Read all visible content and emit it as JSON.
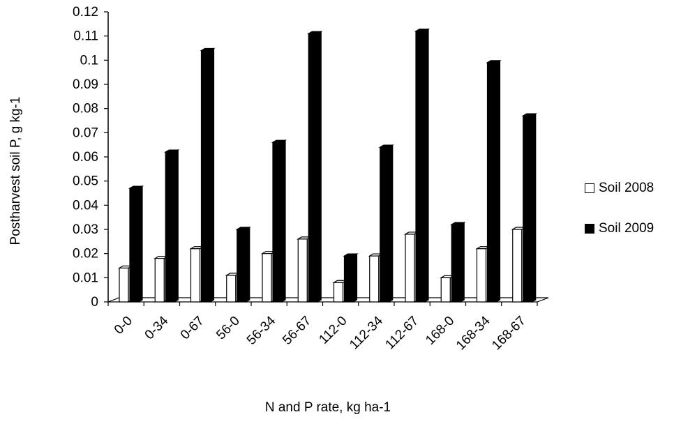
{
  "chart_data": {
    "type": "bar",
    "title": "",
    "xlabel": "N and P rate, kg ha-1",
    "ylabel": "Postharvest soil P, g kg-1",
    "ylim": [
      0,
      0.12
    ],
    "yticks": [
      "0",
      "0.01",
      "0.02",
      "0.03",
      "0.04",
      "0.05",
      "0.06",
      "0.07",
      "0.08",
      "0.09",
      "0.1",
      "0.11",
      "0.12"
    ],
    "categories": [
      "0-0",
      "0-34",
      "0-67",
      "56-0",
      "56-34",
      "56-67",
      "112-0",
      "112-34",
      "112-67",
      "168-0",
      "168-34",
      "168-67"
    ],
    "series": [
      {
        "name": "Soil 2008",
        "color": "#ffffff",
        "values": [
          0.014,
          0.018,
          0.022,
          0.011,
          0.02,
          0.026,
          0.008,
          0.019,
          0.028,
          0.01,
          0.022,
          0.03
        ]
      },
      {
        "name": "Soil 2009",
        "color": "#000000",
        "values": [
          0.047,
          0.062,
          0.104,
          0.03,
          0.066,
          0.111,
          0.019,
          0.064,
          0.112,
          0.032,
          0.099,
          0.077
        ]
      }
    ],
    "grid": false,
    "legend": "right"
  }
}
